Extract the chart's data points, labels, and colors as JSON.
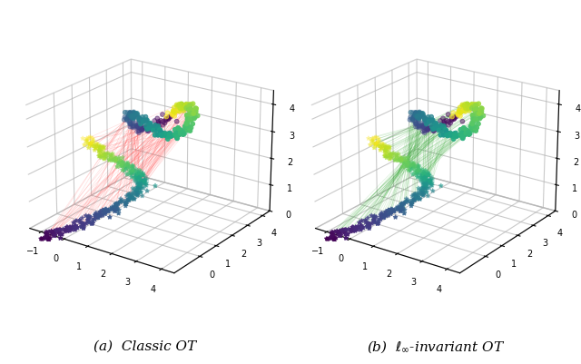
{
  "title_a": "(a)  Classic OT",
  "title_b": "(b)  $\\ell_\\infty$-invariant OT",
  "transport_color_a": "#FF5555",
  "transport_color_b": "#33AA33",
  "transport_alpha_a": 0.18,
  "transport_alpha_b": 0.18,
  "transport_lw": 0.5,
  "n_transport_lines": 150,
  "figsize": [
    6.4,
    4.02
  ],
  "dpi": 100,
  "seed": 42,
  "n_source": 400,
  "n_target": 300,
  "elev": 22,
  "azim": -55,
  "xlim": [
    -1.5,
    4.5
  ],
  "ylim": [
    -1.5,
    4.5
  ],
  "zlim": [
    0,
    4.5
  ],
  "xticks": [
    -1,
    0,
    1,
    2,
    3,
    4
  ],
  "yticks": [
    0,
    1,
    2,
    3,
    4
  ],
  "zticks": [
    0,
    1,
    2,
    3,
    4
  ],
  "marker_src": "*",
  "marker_tgt": "o",
  "marker_size_src": 10,
  "marker_size_tgt": 12,
  "cmap": "viridis",
  "caption_fontsize": 11
}
